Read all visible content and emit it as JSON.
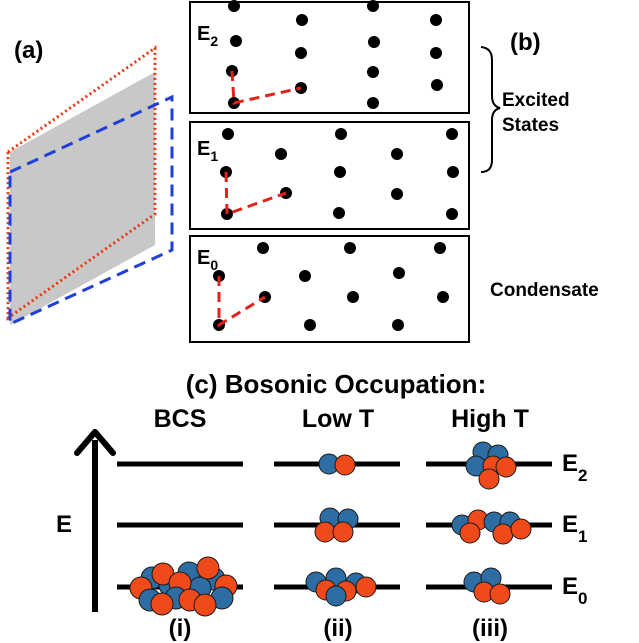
{
  "panel_a": {
    "label": "(a)"
  },
  "panel_b": {
    "label": "(b)",
    "boxes": [
      {
        "energy": "E",
        "sub": "2"
      },
      {
        "energy": "E",
        "sub": "1"
      },
      {
        "energy": "E",
        "sub": "0"
      }
    ],
    "excited_label_line1": "Excited",
    "excited_label_line2": "States",
    "condensate_label": "Condensate"
  },
  "panel_c": {
    "title": "(c) Bosonic Occupation:",
    "columns": [
      {
        "header": "BCS",
        "roman": "(i)"
      },
      {
        "header": "Low T",
        "roman": "(ii)"
      },
      {
        "header": "High T",
        "roman": "(iii)"
      }
    ],
    "axis_label": "E",
    "levels": [
      {
        "energy": "E",
        "sub": "2"
      },
      {
        "energy": "E",
        "sub": "1"
      },
      {
        "energy": "E",
        "sub": "0"
      }
    ],
    "colors": {
      "blue": "#2e6da4",
      "red": "#f04a1a"
    }
  }
}
